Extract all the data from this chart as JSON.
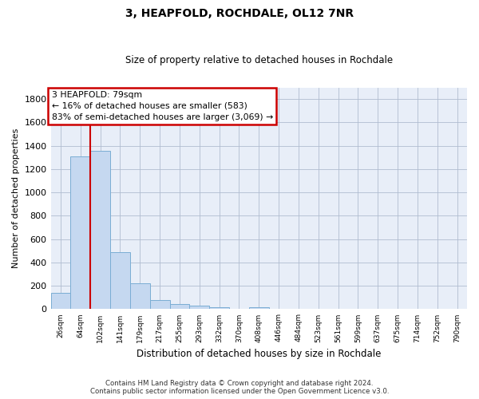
{
  "title": "3, HEAPFOLD, ROCHDALE, OL12 7NR",
  "subtitle": "Size of property relative to detached houses in Rochdale",
  "xlabel": "Distribution of detached houses by size in Rochdale",
  "ylabel": "Number of detached properties",
  "bar_color": "#c5d8f0",
  "bar_edge_color": "#7aadd4",
  "background_color": "#e8eef8",
  "grid_color": "#b0bcd0",
  "categories": [
    "26sqm",
    "64sqm",
    "102sqm",
    "141sqm",
    "179sqm",
    "217sqm",
    "255sqm",
    "293sqm",
    "332sqm",
    "370sqm",
    "408sqm",
    "446sqm",
    "484sqm",
    "523sqm",
    "561sqm",
    "599sqm",
    "637sqm",
    "675sqm",
    "714sqm",
    "752sqm",
    "790sqm"
  ],
  "values": [
    137,
    1310,
    1360,
    490,
    225,
    75,
    45,
    28,
    15,
    0,
    18,
    0,
    0,
    0,
    0,
    0,
    0,
    0,
    0,
    0,
    0
  ],
  "ylim": [
    0,
    1900
  ],
  "yticks": [
    0,
    200,
    400,
    600,
    800,
    1000,
    1200,
    1400,
    1600,
    1800
  ],
  "property_line_x": 1.5,
  "annotation_text": "3 HEAPFOLD: 79sqm\n← 16% of detached houses are smaller (583)\n83% of semi-detached houses are larger (3,069) →",
  "annotation_box_color": "#cc0000",
  "footer_line1": "Contains HM Land Registry data © Crown copyright and database right 2024.",
  "footer_line2": "Contains public sector information licensed under the Open Government Licence v3.0.",
  "figsize": [
    6.0,
    5.0
  ],
  "dpi": 100
}
